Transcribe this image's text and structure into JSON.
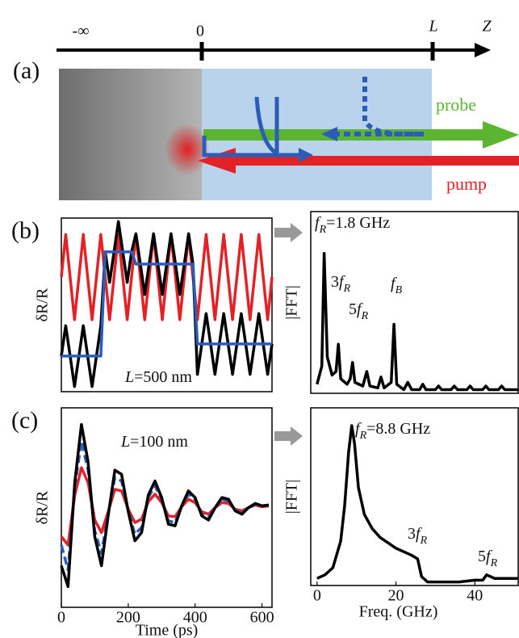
{
  "panel_a": {
    "label": "(a)",
    "minus_inf": "-∞",
    "zero": "0",
    "L": "L",
    "Z": "Z",
    "probe": "probe",
    "pump": "pump"
  },
  "chart_data": [
    {
      "type": "line",
      "panel": "(b)",
      "y_label": "δR/R",
      "xlim": [
        0,
        624
      ],
      "ylim": [
        -1,
        1
      ],
      "x": [
        0,
        13,
        26,
        39,
        52,
        65,
        78,
        91,
        104,
        117,
        130,
        143,
        156,
        169,
        182,
        195,
        208,
        221,
        234,
        247,
        260,
        273,
        286,
        299,
        312,
        325,
        338,
        351,
        364,
        377,
        390,
        403,
        416,
        429,
        442,
        455,
        468,
        481,
        494,
        507,
        520,
        533,
        546,
        559,
        572,
        585,
        598,
        611,
        624
      ],
      "series": [
        {
          "name": "pump",
          "color": "#e32227",
          "values": [
            0.32,
            0.81,
            0.32,
            -0.17,
            0.32,
            0.81,
            0.32,
            -0.17,
            0.32,
            0.81,
            0.32,
            -0.17,
            0.32,
            0.81,
            0.32,
            -0.17,
            0.32,
            0.81,
            0.32,
            -0.17,
            0.32,
            0.81,
            0.32,
            -0.17,
            0.32,
            0.81,
            0.32,
            -0.17,
            0.32,
            0.81,
            0.32,
            -0.17,
            0.32,
            0.81,
            0.32,
            -0.17,
            0.32,
            0.81,
            0.32,
            -0.17,
            0.32,
            0.81,
            0.32,
            -0.17,
            0.32,
            0.81,
            0.32,
            -0.17,
            0.32
          ]
        },
        {
          "name": "black",
          "color": "#000000",
          "values": [
            -0.59,
            -0.24,
            -0.59,
            -0.94,
            -0.59,
            -0.24,
            -0.59,
            -0.94,
            -0.59,
            -0.24,
            0.61,
            0.26,
            0.61,
            0.96,
            0.61,
            0.26,
            0.61,
            0.82,
            0.47,
            0.12,
            0.47,
            0.82,
            0.47,
            0.12,
            0.47,
            0.82,
            0.47,
            0.12,
            0.47,
            0.82,
            0.47,
            -0.8,
            -0.45,
            -0.1,
            -0.45,
            -0.8,
            -0.45,
            -0.1,
            -0.45,
            -0.8,
            -0.45,
            -0.1,
            -0.45,
            -0.8,
            -0.45,
            -0.1,
            -0.45,
            -0.8,
            -0.45
          ]
        },
        {
          "name": "blue",
          "color": "#2a5cb8",
          "values": [
            -0.59,
            -0.59,
            -0.59,
            -0.59,
            -0.59,
            -0.59,
            -0.59,
            -0.59,
            -0.59,
            -0.59,
            0.61,
            0.61,
            0.61,
            0.61,
            0.61,
            0.61,
            0.61,
            0.47,
            0.47,
            0.47,
            0.47,
            0.47,
            0.47,
            0.47,
            0.47,
            0.47,
            0.47,
            0.47,
            0.47,
            0.47,
            0.47,
            -0.45,
            -0.45,
            -0.45,
            -0.45,
            -0.45,
            -0.45,
            -0.45,
            -0.45,
            -0.45,
            -0.45,
            -0.45,
            -0.45,
            -0.45,
            -0.45,
            -0.45,
            -0.45,
            -0.45,
            -0.45
          ]
        }
      ],
      "annotations": [
        {
          "parts": [
            "L",
            "=500 nm"
          ]
        }
      ]
    },
    {
      "type": "line",
      "y_label": "|FFT|",
      "xlim": [
        -1.6,
        51
      ],
      "ylim": [
        0,
        1
      ],
      "x": [
        0,
        1.2,
        1.8,
        2.6,
        3.8,
        4.8,
        5.4,
        6.0,
        7.6,
        8.4,
        9.0,
        9.6,
        11.6,
        12.6,
        13.4,
        15.4,
        16.2,
        17.0,
        18.8,
        19.5,
        20.2,
        22.0,
        23.0,
        24.0,
        26.0,
        26.8,
        27.6,
        30,
        30.8,
        31.6,
        34,
        34.8,
        35.6,
        38,
        38.8,
        39.6,
        42,
        42.8,
        43.6,
        46,
        46.8,
        47.6,
        51
      ],
      "series": [
        {
          "name": "fft",
          "color": "#000000",
          "values": [
            0.05,
            0.15,
            0.77,
            0.2,
            0.1,
            0.12,
            0.27,
            0.08,
            0.05,
            0.08,
            0.17,
            0.06,
            0.04,
            0.12,
            0.04,
            0.03,
            0.09,
            0.03,
            0.06,
            0.38,
            0.05,
            0.02,
            0.06,
            0.02,
            0.02,
            0.05,
            0.02,
            0.02,
            0.04,
            0.02,
            0.02,
            0.04,
            0.02,
            0.02,
            0.04,
            0.02,
            0.02,
            0.04,
            0.02,
            0.02,
            0.04,
            0.02,
            0.02
          ]
        }
      ],
      "annotations": [
        {
          "parts": [
            "f",
            "R",
            "=1.8 GHz"
          ]
        },
        {
          "parts": [
            "3",
            "f",
            "R"
          ]
        },
        {
          "parts": [
            "5",
            "f",
            "R"
          ]
        },
        {
          "parts": [
            "f",
            "B"
          ]
        }
      ]
    },
    {
      "type": "line",
      "panel": "(c)",
      "y_label": "δR/R",
      "x_label": "Time (ps)",
      "xlim": [
        0,
        630
      ],
      "ylim": [
        -1.2,
        1.2
      ],
      "xticks": [
        0,
        200,
        400,
        600
      ],
      "x": [
        0,
        20,
        40,
        60,
        80,
        100,
        120,
        140,
        160,
        180,
        200,
        220,
        240,
        260,
        280,
        300,
        320,
        340,
        360,
        380,
        400,
        420,
        440,
        460,
        480,
        500,
        520,
        540,
        560,
        580,
        600,
        620
      ],
      "series": [
        {
          "name": "pump",
          "color": "#e32227",
          "values": [
            -0.35,
            -0.45,
            0.15,
            0.48,
            0.3,
            -0.15,
            -0.3,
            -0.05,
            0.22,
            0.2,
            -0.02,
            -0.18,
            -0.14,
            0.07,
            0.16,
            0.06,
            -0.1,
            -0.11,
            0.01,
            0.1,
            0.06,
            -0.05,
            -0.08,
            0.0,
            0.06,
            0.05,
            -0.02,
            -0.04,
            0.0,
            0.03,
            0.01,
            0.02
          ]
        },
        {
          "name": "blue",
          "color": "#2a5cb8",
          "dash": true,
          "values": [
            -0.45,
            -0.75,
            0.25,
            0.8,
            0.45,
            -0.28,
            -0.55,
            -0.08,
            0.36,
            0.32,
            -0.04,
            -0.32,
            -0.24,
            0.12,
            0.26,
            0.1,
            -0.16,
            -0.18,
            0.02,
            0.16,
            0.1,
            -0.08,
            -0.12,
            0.0,
            0.1,
            0.08,
            -0.03,
            -0.06,
            0.0,
            0.04,
            0.02,
            0.03
          ]
        },
        {
          "name": "black",
          "color": "#000000",
          "values": [
            -0.7,
            -0.95,
            0.3,
            1.0,
            0.55,
            -0.35,
            -0.7,
            -0.1,
            0.45,
            0.4,
            -0.05,
            -0.4,
            -0.3,
            0.15,
            0.32,
            0.12,
            -0.2,
            -0.22,
            0.02,
            0.2,
            0.12,
            -0.1,
            -0.15,
            0.0,
            0.12,
            0.1,
            -0.04,
            -0.08,
            0.0,
            0.05,
            0.02,
            0.03
          ]
        }
      ],
      "annotations": [
        {
          "parts": [
            "L",
            "=100 nm"
          ]
        }
      ]
    },
    {
      "type": "line",
      "y_label": "|FFT|",
      "x_label": "Freq. (GHz)",
      "xlim": [
        -1.6,
        51
      ],
      "ylim": [
        0,
        1
      ],
      "xticks": [
        0,
        20,
        40
      ],
      "x": [
        0,
        2,
        4,
        6,
        7,
        8,
        8.8,
        9.5,
        10.5,
        12,
        14,
        16,
        18,
        20,
        22,
        24,
        25.5,
        26.5,
        28,
        32,
        36,
        40,
        42,
        43,
        45,
        51
      ],
      "series": [
        {
          "name": "fft",
          "color": "#000000",
          "values": [
            0.04,
            0.06,
            0.1,
            0.25,
            0.45,
            0.75,
            0.9,
            0.8,
            0.55,
            0.4,
            0.32,
            0.27,
            0.24,
            0.21,
            0.19,
            0.17,
            0.15,
            0.05,
            0.02,
            0.02,
            0.02,
            0.03,
            0.03,
            0.06,
            0.04,
            0.04
          ]
        }
      ],
      "annotations": [
        {
          "parts": [
            "f",
            "R",
            "=8.8 GHz"
          ]
        },
        {
          "parts": [
            "3",
            "f",
            "R"
          ]
        },
        {
          "parts": [
            "5",
            "f",
            "R"
          ]
        }
      ]
    }
  ]
}
